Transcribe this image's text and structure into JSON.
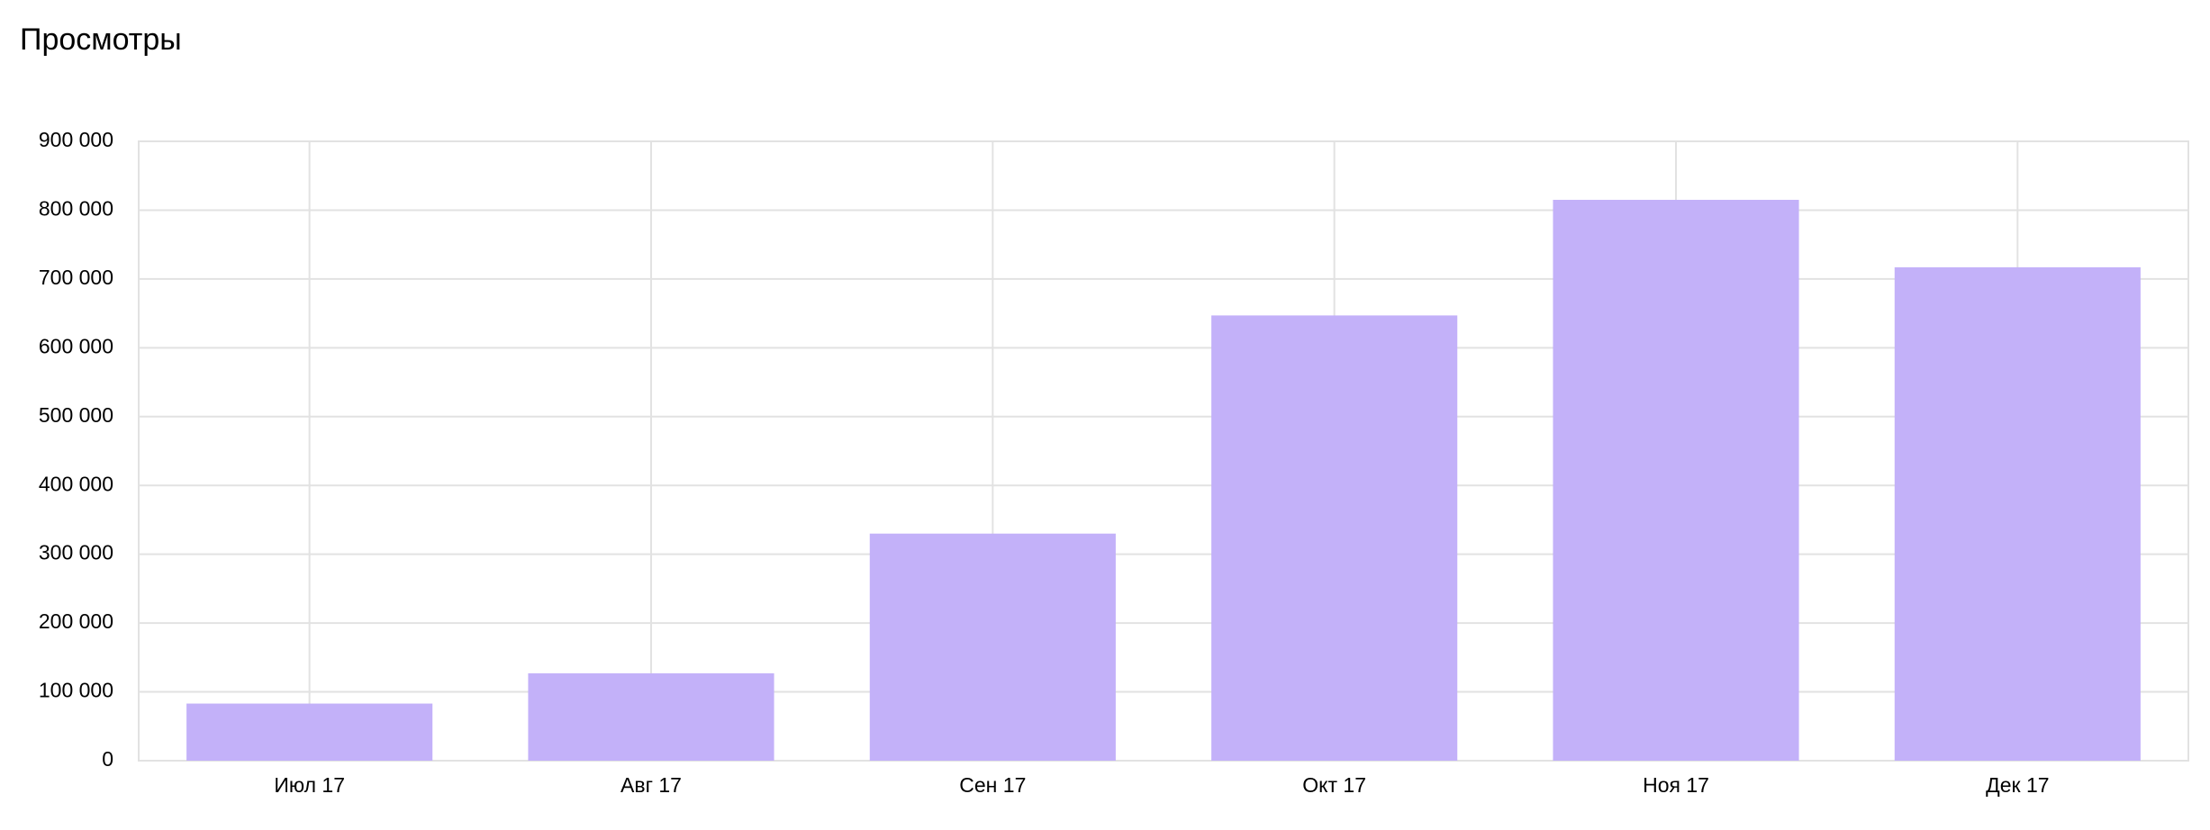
{
  "chart_data": {
    "type": "bar",
    "title": "Просмотры",
    "categories": [
      "Июл 17",
      "Авг 17",
      "Сен 17",
      "Окт 17",
      "Ноя 17",
      "Дек 17"
    ],
    "values": [
      83000,
      127000,
      330000,
      647000,
      815000,
      717000
    ],
    "color": "#c3b1f9",
    "ylim": [
      0,
      900000
    ],
    "yticks": [
      0,
      {
        "value": 100000,
        "label": "100 000"
      },
      {
        "value": 200000,
        "label": "200 000"
      },
      {
        "value": 300000,
        "label": "300 000"
      },
      {
        "value": 400000,
        "label": "400 000"
      },
      {
        "value": 500000,
        "label": "500 000"
      },
      {
        "value": 600000,
        "label": "600 000"
      },
      {
        "value": 700000,
        "label": "700 000"
      },
      {
        "value": 800000,
        "label": "800 000"
      },
      {
        "value": 900000,
        "label": "900 000"
      }
    ],
    "grid": true
  }
}
